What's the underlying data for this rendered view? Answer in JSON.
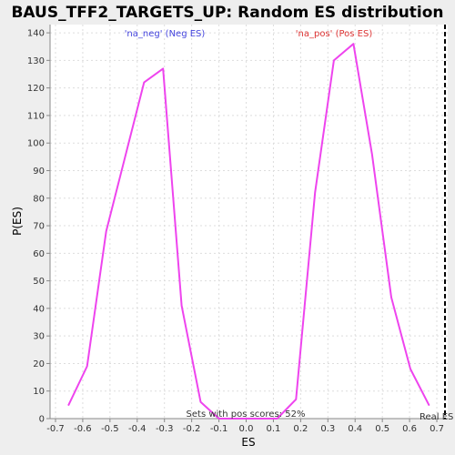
{
  "chart_data": {
    "type": "line",
    "title": "BAUS_TFF2_TARGETS_UP: Random ES distribution",
    "xlabel": "ES",
    "ylabel": "P(ES)",
    "xlim": [
      -0.72,
      0.74
    ],
    "ylim": [
      0,
      143
    ],
    "grid": true,
    "line_color": "#ee44ee",
    "x_ticks": [
      -0.7,
      -0.6,
      -0.5,
      -0.4,
      -0.3,
      -0.2,
      -0.1,
      0.0,
      0.1,
      0.2,
      0.3,
      0.4,
      0.5,
      0.6,
      0.7
    ],
    "x_tick_labels": [
      "-0.7",
      "-0.6",
      "-0.5",
      "-0.4",
      "-0.3",
      "-0.2",
      "-0.1",
      "0.0",
      "0.1",
      "0.2",
      "0.3",
      "0.4",
      "0.5",
      "0.6",
      "0.7"
    ],
    "y_ticks": [
      0,
      10,
      20,
      30,
      40,
      50,
      60,
      70,
      80,
      90,
      100,
      110,
      120,
      130,
      140
    ],
    "y_tick_labels": [
      "0",
      "10",
      "20",
      "30",
      "40",
      "50",
      "60",
      "70",
      "80",
      "90",
      "100",
      "110",
      "120",
      "130",
      "140"
    ],
    "series": [
      {
        "x": [
          -0.652,
          -0.584,
          -0.514,
          -0.375,
          -0.305,
          -0.237,
          -0.167,
          -0.1,
          0.114,
          0.183,
          0.253,
          0.322,
          0.394,
          0.462,
          0.533,
          0.603,
          0.671
        ],
        "y": [
          5,
          19,
          68,
          122,
          127,
          41,
          6,
          0,
          0,
          7,
          82,
          130,
          136,
          96,
          44,
          18,
          5
        ]
      }
    ],
    "annotations": {
      "neg_label": "'na_neg' (Neg ES)",
      "pos_label": "'na_pos' (Pos ES)",
      "pos_scores": "Sets with pos scores: 52%",
      "real_es": "Real ES",
      "neg_color": "#4444dd",
      "pos_color": "#dd3333"
    },
    "real_es_x": 0.73
  }
}
